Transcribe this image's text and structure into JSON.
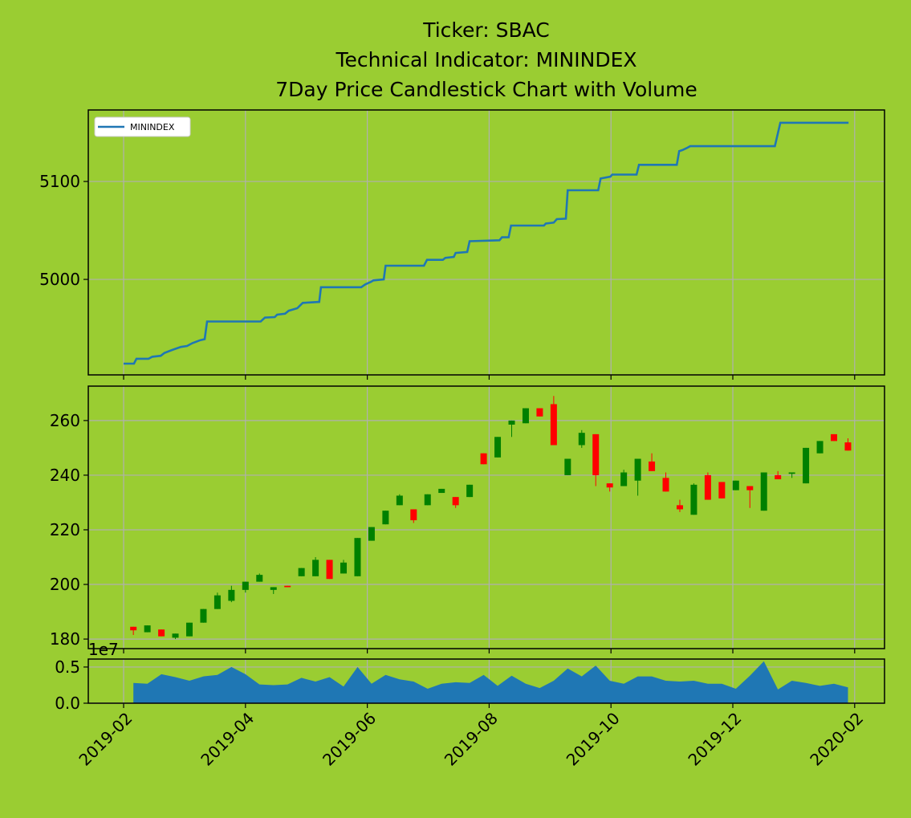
{
  "chart_data": [
    {
      "type": "line",
      "title": [
        "Ticker: SBAC",
        "Technical Indicator: MININDEX",
        "7Day Price Candlestick Chart with Volume"
      ],
      "ylim": [
        4902.5,
        5173
      ],
      "yticks": [
        5000,
        5100
      ],
      "grid": true,
      "legend": "upper left",
      "series": [
        {
          "name": "MININDEX",
          "color": "#1f77b4",
          "x": [
            1.0,
            1.17,
            1.21,
            1.41,
            1.47,
            1.61,
            1.67,
            1.8,
            1.94,
            2.04,
            2.13,
            2.26,
            2.33,
            2.37,
            3.25,
            3.32,
            3.48,
            3.52,
            3.65,
            3.71,
            3.85,
            3.94,
            4.21,
            4.24,
            4.9,
            4.97,
            5.06,
            5.1,
            5.27,
            5.3,
            5.93,
            5.98,
            6.24,
            6.28,
            6.42,
            6.45,
            6.64,
            6.68,
            7.17,
            7.21,
            7.32,
            7.36,
            7.9,
            7.93,
            8.06,
            8.11,
            8.26,
            8.29,
            8.79,
            8.83,
            8.99,
            9.02,
            9.42,
            9.46,
            10.08,
            10.12,
            10.17,
            10.24,
            10.3,
            11.69,
            11.78,
            12.9
          ],
          "values": [
            4914,
            4914,
            4919,
            4919,
            4921,
            4922,
            4925,
            4928,
            4931,
            4932,
            4935,
            4938,
            4939,
            4957,
            4957,
            4961,
            4961.5,
            4964,
            4965,
            4968,
            4970.5,
            4976,
            4977,
            4992,
            4992,
            4995,
            4997.5,
            4999,
            5000,
            5014,
            5014,
            5020,
            5020,
            5022,
            5023,
            5027,
            5028,
            5039,
            5040,
            5043,
            5043,
            5055,
            5055,
            5057,
            5058,
            5061.5,
            5062,
            5091,
            5091,
            5103,
            5105,
            5107,
            5107,
            5117,
            5117,
            5131,
            5132,
            5134,
            5136,
            5136,
            5160,
            5160
          ]
        }
      ]
    },
    {
      "type": "candlestick",
      "ylim": [
        176.5,
        272.6
      ],
      "yticks": [
        180,
        200,
        220,
        240,
        260
      ],
      "grid": true,
      "up_color": "green",
      "down_color": "red",
      "x": [
        1.16,
        1.39,
        1.62,
        1.85,
        2.08,
        2.31,
        2.54,
        2.77,
        3.0,
        3.23,
        3.46,
        3.69,
        3.92,
        4.15,
        4.38,
        4.61,
        4.84,
        5.07,
        5.3,
        5.53,
        5.76,
        5.99,
        6.22,
        6.45,
        6.68,
        6.91,
        7.14,
        7.37,
        7.6,
        7.83,
        8.06,
        8.29,
        8.52,
        8.75,
        8.98,
        9.21,
        9.44,
        9.67,
        9.9,
        10.13,
        10.36,
        10.59,
        10.82,
        11.05,
        11.28,
        11.51,
        11.74,
        11.97,
        12.2,
        12.43,
        12.66,
        12.89
      ],
      "open": [
        184.5,
        182.5,
        183.5,
        180.5,
        181,
        186,
        191,
        194,
        198,
        201,
        198,
        199.5,
        203,
        203,
        209,
        204,
        203,
        216,
        222,
        229,
        227.5,
        229,
        233.5,
        232,
        232,
        248,
        246.5,
        258.5,
        259,
        264.5,
        266,
        240,
        251,
        255,
        237,
        236,
        238,
        245,
        239,
        229,
        225.5,
        240,
        237.5,
        234.5,
        236,
        227,
        240,
        240.5,
        237,
        248,
        255,
        252
      ],
      "high": [
        184.5,
        185,
        183.5,
        182,
        186,
        191,
        197,
        199.5,
        201,
        204,
        199,
        199.5,
        206,
        210,
        209,
        209,
        217,
        221,
        227,
        233,
        227.5,
        233,
        235,
        232,
        236.5,
        248,
        254,
        260,
        264.5,
        264.5,
        269,
        246,
        256.5,
        255,
        237,
        242,
        246,
        248,
        241,
        231,
        237,
        241,
        237.5,
        238,
        236,
        241,
        241.5,
        241,
        250,
        252.5,
        255,
        253.5
      ],
      "low": [
        181.5,
        182.5,
        181,
        180,
        181,
        186,
        191,
        193.5,
        197,
        201,
        196.5,
        199,
        203,
        203,
        202,
        204,
        203,
        216,
        222,
        229,
        222.5,
        229,
        233.5,
        228,
        232,
        244,
        246.5,
        254,
        259,
        261.5,
        251,
        240,
        250,
        236,
        234,
        236,
        232.5,
        241.5,
        234,
        226.5,
        225.5,
        231,
        231.5,
        234.5,
        228,
        227,
        238.5,
        239,
        237,
        248,
        252.5,
        249
      ],
      "close": [
        183.2,
        185,
        181,
        182,
        186,
        191,
        196,
        198,
        201,
        203.5,
        199,
        199,
        206,
        209,
        202,
        208,
        217,
        221,
        227,
        232.5,
        223.5,
        233,
        235,
        229,
        236.5,
        244,
        254,
        260,
        264.5,
        261.5,
        251,
        246,
        255.5,
        240,
        235.5,
        241,
        246,
        241.5,
        234,
        227.5,
        236.5,
        231,
        231.5,
        238,
        234.5,
        241,
        238.5,
        241,
        250,
        252.5,
        252.5,
        249
      ]
    },
    {
      "type": "area",
      "offset_label": "1e7",
      "color": "#1f77b4",
      "xlim": [
        0.42,
        13.49
      ],
      "xticks": [
        {
          "value": 1,
          "label": "2019-02"
        },
        {
          "value": 3,
          "label": "2019-04"
        },
        {
          "value": 5,
          "label": "2019-06"
        },
        {
          "value": 7,
          "label": "2019-08"
        },
        {
          "value": 9,
          "label": "2019-10"
        },
        {
          "value": 11,
          "label": "2019-12"
        },
        {
          "value": 13,
          "label": "2020-02"
        }
      ],
      "ylim": [
        0,
        0.61
      ],
      "yticks": [
        {
          "value": 0,
          "label": "0.0"
        },
        0.5
      ],
      "grid": true,
      "x": [
        1.16,
        1.39,
        1.62,
        1.85,
        2.08,
        2.31,
        2.54,
        2.77,
        3.0,
        3.23,
        3.46,
        3.69,
        3.92,
        4.15,
        4.38,
        4.61,
        4.84,
        5.07,
        5.3,
        5.53,
        5.76,
        5.99,
        6.22,
        6.45,
        6.68,
        6.91,
        7.14,
        7.37,
        7.6,
        7.83,
        8.06,
        8.29,
        8.52,
        8.75,
        8.98,
        9.21,
        9.44,
        9.67,
        9.9,
        10.13,
        10.36,
        10.59,
        10.82,
        11.05,
        11.28,
        11.51,
        11.74,
        11.97,
        12.2,
        12.43,
        12.66,
        12.89
      ],
      "values": [
        0.28,
        0.27,
        0.4,
        0.36,
        0.31,
        0.37,
        0.39,
        0.5,
        0.4,
        0.26,
        0.25,
        0.26,
        0.35,
        0.3,
        0.36,
        0.23,
        0.5,
        0.27,
        0.39,
        0.33,
        0.3,
        0.2,
        0.27,
        0.29,
        0.28,
        0.39,
        0.24,
        0.38,
        0.27,
        0.21,
        0.31,
        0.48,
        0.37,
        0.52,
        0.31,
        0.27,
        0.37,
        0.37,
        0.31,
        0.3,
        0.31,
        0.27,
        0.27,
        0.2,
        0.38,
        0.58,
        0.19,
        0.31,
        0.28,
        0.24,
        0.27,
        0.22
      ]
    }
  ]
}
